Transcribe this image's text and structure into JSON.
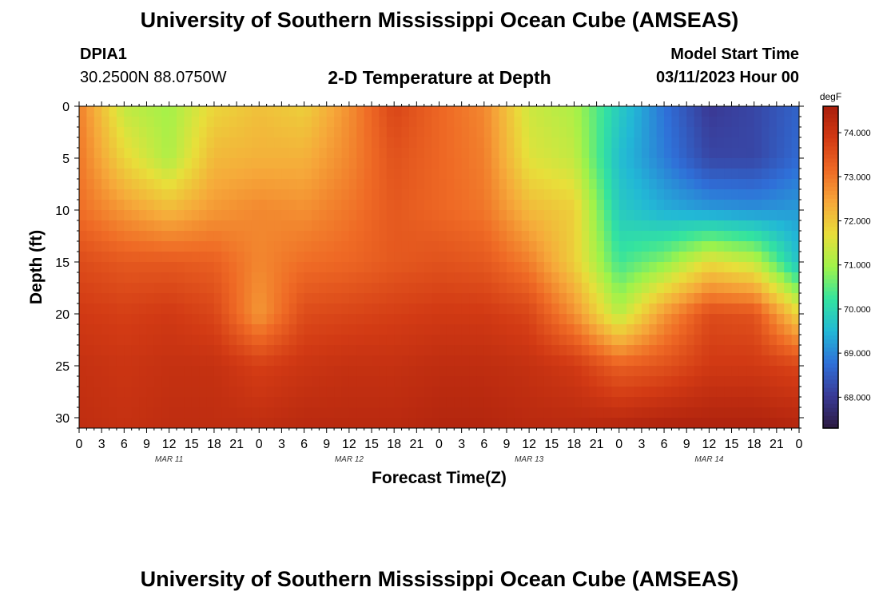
{
  "header": {
    "title": "University of Southern Mississippi Ocean Cube (AMSEAS)",
    "station_id": "DPIA1",
    "coordinates": "30.2500N  88.0750W",
    "subtitle": "2-D Temperature at Depth",
    "model_start_label": "Model Start Time",
    "model_start_value": "03/11/2023 Hour 00"
  },
  "footer": {
    "title": "University of Southern Mississippi Ocean Cube (AMSEAS)"
  },
  "colors": {
    "colormap": [
      "#2b1a40",
      "#3a3a96",
      "#2f6fd8",
      "#22b8d6",
      "#33e3a0",
      "#9ff34a",
      "#e8df3a",
      "#f6a93a",
      "#ef6a25",
      "#d23a14",
      "#a81e0c"
    ]
  },
  "chart_data": {
    "type": "heatmap",
    "title": "2-D Temperature at Depth",
    "xlabel": "Forecast Time(Z)",
    "ylabel": "Depth (ft)",
    "x_tick_labels": [
      "0",
      "3",
      "6",
      "9",
      "12",
      "15",
      "18",
      "21",
      "0",
      "3",
      "6",
      "9",
      "12",
      "15",
      "18",
      "21",
      "0",
      "3",
      "6",
      "9",
      "12",
      "15",
      "18",
      "21",
      "0",
      "3",
      "6",
      "9",
      "12",
      "15",
      "18",
      "21",
      "0"
    ],
    "x_hours_range": [
      0,
      96
    ],
    "date_labels": [
      {
        "label": "MAR 11",
        "hour": 12
      },
      {
        "label": "MAR 12",
        "hour": 36
      },
      {
        "label": "MAR 13",
        "hour": 60
      },
      {
        "label": "MAR 14",
        "hour": 84
      }
    ],
    "y_ticks": [
      0,
      5,
      10,
      15,
      20,
      25,
      30
    ],
    "y_range": [
      0,
      31
    ],
    "colorbar": {
      "unit": "degF",
      "range": [
        67.3,
        74.6
      ],
      "tick_values": [
        68,
        69,
        70,
        71,
        72,
        73,
        74
      ],
      "tick_labels": [
        "68.000",
        "69.000",
        "70.000",
        "71.000",
        "72.000",
        "73.000",
        "74.000"
      ]
    },
    "time_hours": [
      0,
      6,
      12,
      18,
      24,
      30,
      36,
      42,
      48,
      54,
      60,
      66,
      72,
      78,
      84,
      90,
      96
    ],
    "depths_ft": [
      0,
      5,
      10,
      15,
      20,
      25,
      31
    ],
    "values_degF": [
      [
        72.9,
        71.3,
        71.0,
        71.8,
        72.1,
        71.9,
        72.7,
        73.7,
        73.2,
        72.8,
        71.4,
        71.1,
        69.8,
        68.8,
        68.0,
        68.2,
        68.6
      ],
      [
        73.0,
        71.8,
        71.1,
        72.2,
        72.3,
        72.3,
        72.8,
        73.5,
        73.2,
        72.9,
        71.6,
        71.3,
        69.6,
        68.9,
        68.2,
        68.2,
        68.7
      ],
      [
        73.1,
        72.6,
        72.2,
        72.6,
        72.8,
        72.7,
        73.0,
        73.4,
        73.2,
        73.0,
        72.2,
        71.9,
        69.8,
        69.4,
        69.2,
        69.1,
        69.2
      ],
      [
        73.6,
        73.4,
        73.4,
        73.3,
        72.8,
        73.1,
        73.2,
        73.4,
        73.5,
        73.4,
        72.9,
        71.9,
        70.3,
        70.8,
        71.7,
        71.3,
        69.6
      ],
      [
        73.9,
        73.8,
        73.9,
        73.7,
        72.6,
        73.6,
        73.7,
        73.8,
        73.9,
        73.9,
        73.7,
        72.7,
        71.2,
        72.6,
        73.6,
        73.5,
        71.8
      ],
      [
        74.1,
        74.0,
        74.1,
        74.1,
        73.8,
        74.0,
        74.1,
        74.1,
        74.2,
        74.2,
        74.1,
        73.9,
        73.3,
        73.5,
        73.9,
        73.9,
        73.7
      ],
      [
        74.2,
        74.1,
        74.2,
        74.2,
        74.2,
        74.3,
        74.3,
        74.3,
        74.4,
        74.4,
        74.3,
        74.3,
        74.4,
        74.5,
        74.5,
        74.5,
        74.4
      ]
    ]
  }
}
